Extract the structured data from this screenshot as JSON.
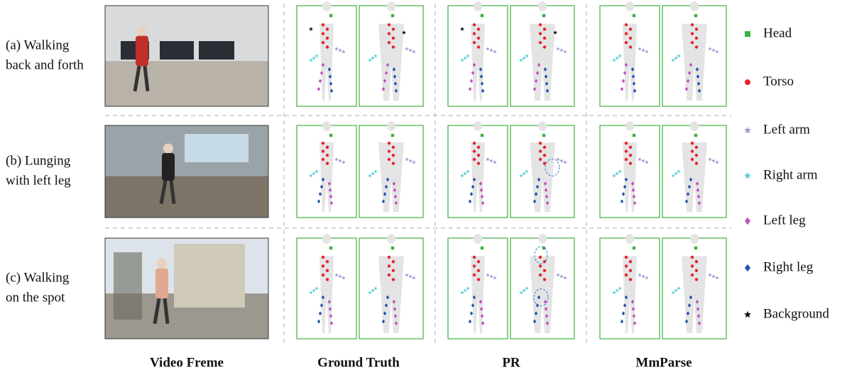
{
  "row_labels": [
    [
      "(a) Walking",
      "back and forth"
    ],
    [
      "(b) Lunging",
      "with left leg"
    ],
    [
      "(c) Walking",
      "on the spot"
    ]
  ],
  "column_titles": [
    "Video Freme",
    "Ground Truth",
    "PR",
    "MmParse"
  ],
  "legend": [
    {
      "label": "Head",
      "color": "#3cb043",
      "marker": "square"
    },
    {
      "label": "Torso",
      "color": "#e8242a",
      "marker": "circle"
    },
    {
      "label": "Left arm",
      "color": "#a49ad6",
      "marker": "star"
    },
    {
      "label": "Right arm",
      "color": "#5fcfd6",
      "marker": "star"
    },
    {
      "label": "Left leg",
      "color": "#c050b8",
      "marker": "diamond"
    },
    {
      "label": "Right leg",
      "color": "#2450b0",
      "marker": "diamond"
    },
    {
      "label": "Background",
      "color": "#111111",
      "marker": "star"
    }
  ]
}
